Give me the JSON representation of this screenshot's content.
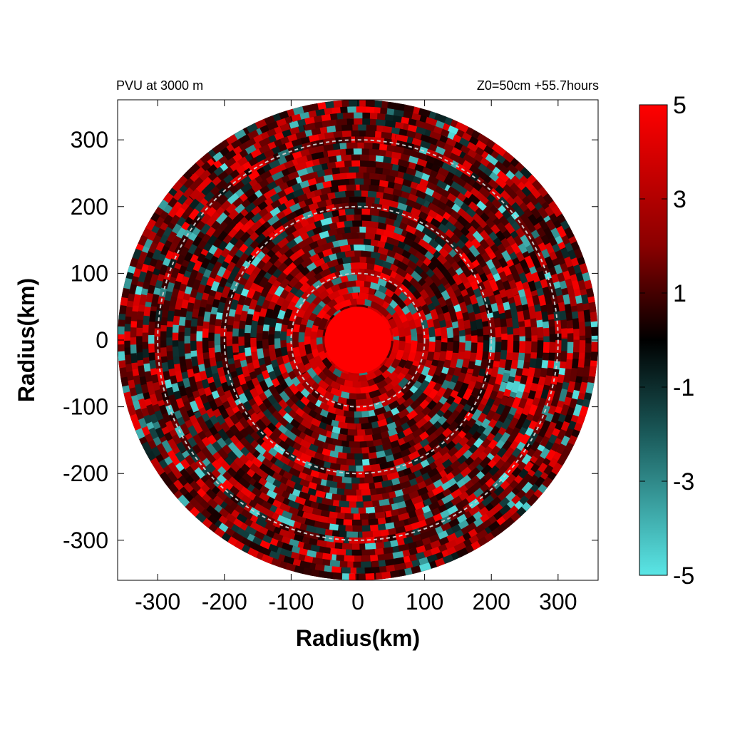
{
  "chart_data": {
    "type": "heatmap",
    "title_left": "PVU at  3000 m",
    "title_right": "Z0=50cm  +55.7hours",
    "xlabel": "Radius(km)",
    "ylabel": "Radius(km)",
    "xlim": [
      -360,
      360
    ],
    "ylim": [
      -360,
      360
    ],
    "xticks": [
      -300,
      -200,
      -100,
      0,
      100,
      200,
      300
    ],
    "yticks": [
      300,
      200,
      100,
      0,
      -100,
      -200,
      -300
    ],
    "domain_radius_km": 360,
    "reference_circles_km": [
      100,
      200,
      300
    ],
    "core": {
      "value": 5,
      "radius_km": 50
    },
    "colorbar": {
      "range": [
        -5,
        5
      ],
      "ticks": [
        5,
        3,
        1,
        -1,
        -3,
        -5
      ],
      "stops": [
        {
          "value": 5,
          "color": "#ff0000"
        },
        {
          "value": 2,
          "color": "#8a0000"
        },
        {
          "value": 0,
          "color": "#000000"
        },
        {
          "value": -2,
          "color": "#1a5a5a"
        },
        {
          "value": -5,
          "color": "#5ae6e6"
        }
      ]
    }
  }
}
